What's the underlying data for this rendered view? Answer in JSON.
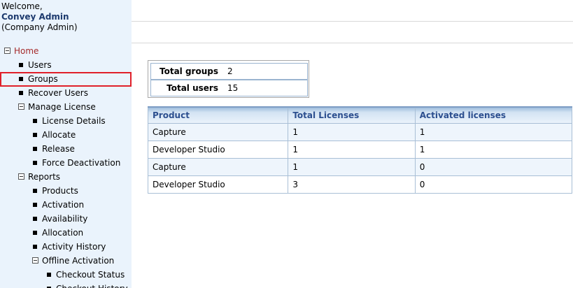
{
  "header": {
    "welcome": "Welcome,",
    "user": "Convey Admin",
    "role": "(Company Admin)"
  },
  "nav": [
    {
      "label": "Home",
      "level": 0,
      "expanded": true
    },
    {
      "label": "Users",
      "level": 1
    },
    {
      "label": "Groups",
      "level": 1,
      "selected": true
    },
    {
      "label": "Recover Users",
      "level": 1
    },
    {
      "label": "Manage License",
      "level": 1,
      "expanded": true
    },
    {
      "label": "License Details",
      "level": 2
    },
    {
      "label": "Allocate",
      "level": 2
    },
    {
      "label": "Release",
      "level": 2
    },
    {
      "label": "Force Deactivation",
      "level": 2
    },
    {
      "label": "Reports",
      "level": 1,
      "expanded": true
    },
    {
      "label": "Products",
      "level": 2
    },
    {
      "label": "Activation",
      "level": 2
    },
    {
      "label": "Availability",
      "level": 2
    },
    {
      "label": "Allocation",
      "level": 2
    },
    {
      "label": "Activity History",
      "level": 2
    },
    {
      "label": "Offline Activation",
      "level": 2,
      "expanded": true
    },
    {
      "label": "Checkout Status",
      "level": 3
    },
    {
      "label": "Checkout History",
      "level": 3
    }
  ],
  "summary": {
    "rows": [
      [
        "Total groups",
        2
      ],
      [
        "Total users",
        15
      ]
    ]
  },
  "table": {
    "columns": [
      "Product",
      "Total Licenses",
      "Activated licenses"
    ],
    "rows": [
      [
        "Capture",
        1,
        1
      ],
      [
        "Developer Studio",
        1,
        1
      ],
      [
        "Capture",
        1,
        0
      ],
      [
        "Developer Studio",
        3,
        0
      ]
    ]
  }
}
